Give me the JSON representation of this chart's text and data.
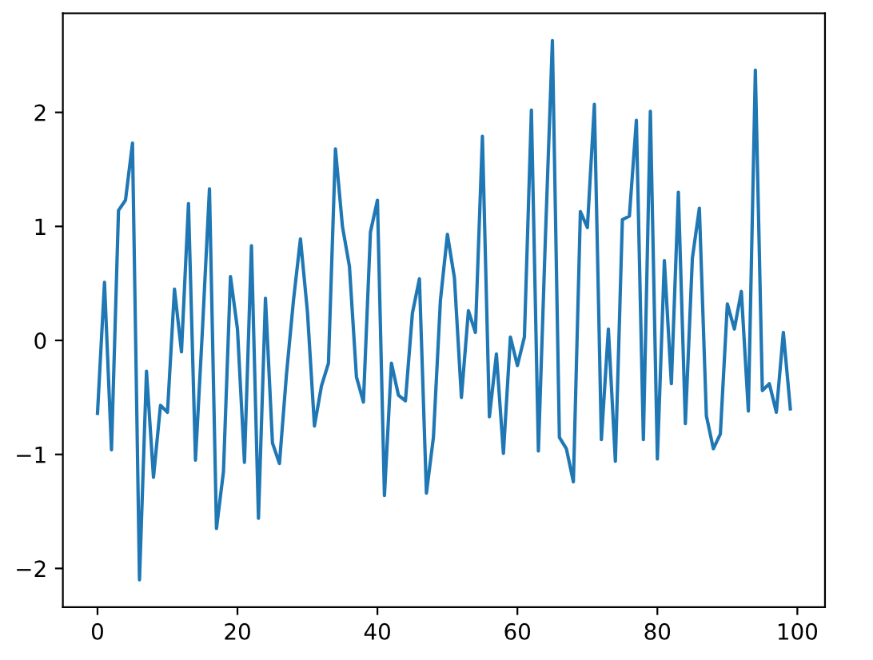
{
  "chart_data": {
    "type": "line",
    "x": [
      0,
      1,
      2,
      3,
      4,
      5,
      6,
      7,
      8,
      9,
      10,
      11,
      12,
      13,
      14,
      15,
      16,
      17,
      18,
      19,
      20,
      21,
      22,
      23,
      24,
      25,
      26,
      27,
      28,
      29,
      30,
      31,
      32,
      33,
      34,
      35,
      36,
      37,
      38,
      39,
      40,
      41,
      42,
      43,
      44,
      45,
      46,
      47,
      48,
      49,
      50,
      51,
      52,
      53,
      54,
      55,
      56,
      57,
      58,
      59,
      60,
      61,
      62,
      63,
      64,
      65,
      66,
      67,
      68,
      69,
      70,
      71,
      72,
      73,
      74,
      75,
      76,
      77,
      78,
      79,
      80,
      81,
      82,
      83,
      84,
      85,
      86,
      87,
      88,
      89,
      90,
      91,
      92,
      93,
      94,
      95,
      96,
      97,
      98,
      99
    ],
    "series": [
      {
        "color": "#1f77b4",
        "values": [
          -0.64,
          0.51,
          -0.96,
          1.14,
          1.23,
          1.73,
          -2.1,
          -0.27,
          -1.2,
          -0.57,
          -0.63,
          0.45,
          -0.1,
          1.2,
          -1.05,
          0.1,
          1.33,
          -1.65,
          -1.15,
          0.56,
          0.1,
          -1.07,
          0.83,
          -1.56,
          0.37,
          -0.9,
          -1.08,
          -0.3,
          0.35,
          0.89,
          0.25,
          -0.75,
          -0.4,
          -0.2,
          1.68,
          1.0,
          0.65,
          -0.32,
          -0.54,
          0.95,
          1.23,
          -1.36,
          -0.2,
          -0.48,
          -0.53,
          0.24,
          0.54,
          -1.34,
          -0.85,
          0.35,
          0.93,
          0.55,
          -0.5,
          0.26,
          0.07,
          1.79,
          -0.67,
          -0.12,
          -0.99,
          0.03,
          -0.22,
          0.03,
          2.02,
          -0.97,
          0.9,
          2.63,
          -0.85,
          -0.95,
          -1.24,
          1.13,
          0.99,
          2.07,
          -0.87,
          0.1,
          -1.06,
          1.06,
          1.09,
          1.93,
          -0.87,
          2.01,
          -1.04,
          0.7,
          -0.38,
          1.3,
          -0.73,
          0.72,
          1.16,
          -0.66,
          -0.95,
          -0.82,
          0.32,
          0.1,
          0.43,
          -0.62,
          2.37,
          -0.44,
          -0.38,
          -0.63,
          0.07,
          -0.6
        ]
      }
    ],
    "xlim": [
      -4.95,
      103.95
    ],
    "ylim": [
      -2.34,
      2.87
    ],
    "xticks": [
      0,
      20,
      40,
      60,
      80,
      100
    ],
    "yticks": [
      {
        "value": -2,
        "label": "−2"
      },
      {
        "value": -1,
        "label": "−1"
      },
      0,
      1,
      2
    ],
    "grid": false,
    "legend": false,
    "marker": "none",
    "line_style": "solid"
  }
}
